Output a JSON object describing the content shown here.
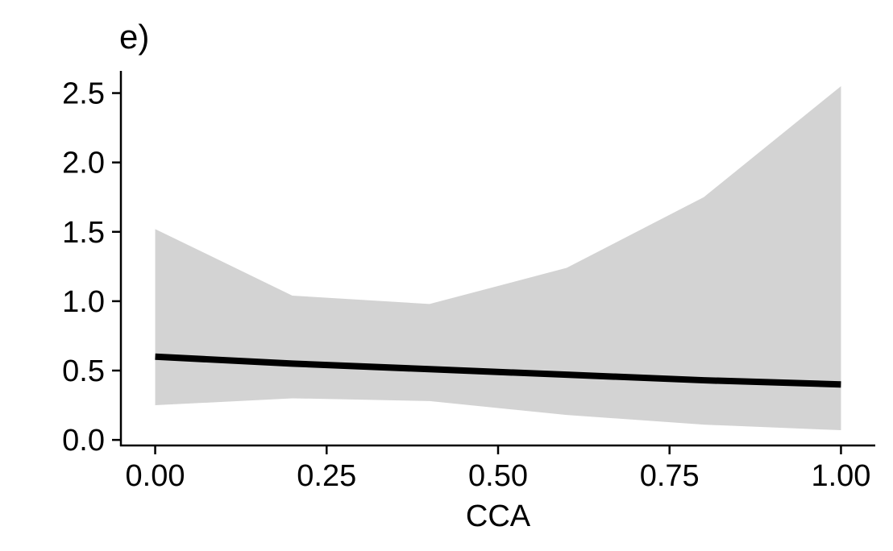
{
  "chart_data": {
    "type": "line",
    "title": "e)",
    "xlabel": "CCA",
    "ylabel": "",
    "xlim": [
      -0.05,
      1.05
    ],
    "ylim": [
      -0.04,
      2.66
    ],
    "x_ticks": [
      0.0,
      0.25,
      0.5,
      0.75,
      1.0
    ],
    "x_tick_labels": [
      "0.00",
      "0.25",
      "0.50",
      "0.75",
      "1.00"
    ],
    "y_ticks": [
      0.0,
      0.5,
      1.0,
      1.5,
      2.0,
      2.5
    ],
    "y_tick_labels": [
      "0.0",
      "0.5",
      "1.0",
      "1.5",
      "2.0",
      "2.5"
    ],
    "grid": false,
    "legend": "none",
    "series": [
      {
        "x": [
          0.0,
          0.2,
          0.4,
          0.6,
          0.8,
          1.0
        ],
        "y": [
          0.6,
          0.55,
          0.51,
          0.47,
          0.43,
          0.4
        ],
        "color": "#000000"
      }
    ],
    "band": {
      "x": [
        0.0,
        0.2,
        0.4,
        0.6,
        0.8,
        1.0
      ],
      "lower": [
        0.25,
        0.3,
        0.28,
        0.18,
        0.11,
        0.07
      ],
      "upper": [
        1.52,
        1.04,
        0.98,
        1.24,
        1.75,
        2.55
      ],
      "color": "#d3d3d3"
    }
  }
}
